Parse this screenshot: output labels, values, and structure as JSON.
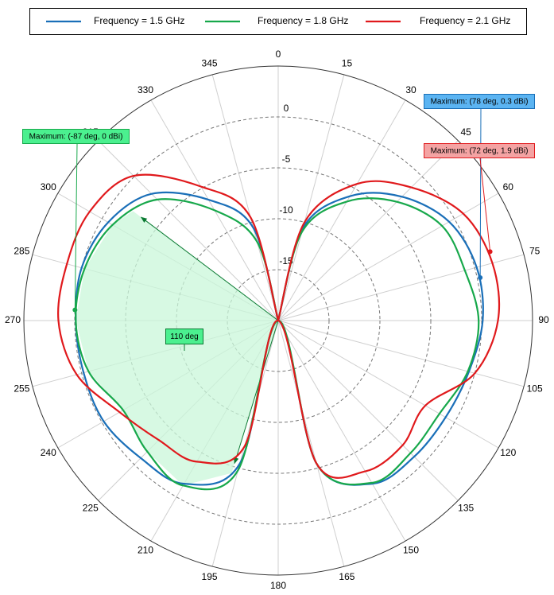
{
  "chart_data": {
    "type": "polar",
    "x": [
      0,
      15,
      30,
      45,
      60,
      75,
      90,
      105,
      120,
      135,
      150,
      165,
      180,
      195,
      210,
      225,
      240,
      255,
      270,
      285,
      300,
      315,
      330,
      345,
      360
    ],
    "series": [
      {
        "name": "Frequency = 1.5 GHz",
        "color": "#1a6fb8",
        "values": [
          -20,
          -10.6,
          -5.9,
          -2.8,
          -0.6,
          0.2,
          0.1,
          -0.6,
          -1,
          -1.1,
          -1.5,
          -5.5,
          -20,
          -5.5,
          -1.5,
          -0.9,
          -0.2,
          -0.2,
          -0.1,
          0,
          -0.7,
          -2.4,
          -6.3,
          -10.6,
          -20
        ]
      },
      {
        "name": "Frequency = 1.8 GHz",
        "color": "#17a84b",
        "values": [
          -20,
          -11,
          -6.5,
          -3.5,
          -1.4,
          -1,
          -0.3,
          -0.7,
          -1.7,
          -1.6,
          -1.6,
          -5.5,
          -20,
          -4.8,
          -1.3,
          -1.8,
          -2.4,
          -0.7,
          -0.1,
          -0.3,
          -1.2,
          -3.2,
          -7.5,
          -12,
          -20
        ]
      },
      {
        "name": "Frequency = 2.1 GHz",
        "color": "#e0191c",
        "values": [
          -20,
          -10,
          -4.5,
          -1.5,
          1,
          1.8,
          1.6,
          0,
          -3.3,
          -2.7,
          -2.9,
          -5.5,
          -20,
          -7.2,
          -4,
          -3.4,
          -2,
          0.5,
          1.6,
          1.5,
          1.4,
          0.1,
          -4.8,
          -9.5,
          -20
        ]
      }
    ],
    "rlim": [
      -20,
      5
    ],
    "rticks": [
      0,
      -5,
      -10,
      -15
    ],
    "xticks": [
      0,
      15,
      30,
      45,
      60,
      75,
      90,
      105,
      120,
      135,
      150,
      165,
      180,
      195,
      210,
      225,
      240,
      255,
      270,
      285,
      300,
      315,
      330,
      345
    ],
    "annotations": [
      {
        "label": "Maximum: (78 deg, 0.3 dBi)",
        "series": 0,
        "angle": 78,
        "value": 0.3,
        "color": "#5bb4f2"
      },
      {
        "label": "Maximum: (72 deg, 1.9 dBi)",
        "series": 2,
        "angle": 72,
        "value": 1.9,
        "color": "#f4a3a3"
      },
      {
        "label": "Maximum: (-87 deg, 0 dBi)",
        "series": 1,
        "angle": -87,
        "value": 0,
        "color": "#4bf08f"
      }
    ],
    "beamwidth": {
      "label": "110 deg",
      "series": 1,
      "from": 197,
      "to": 307,
      "color": "#c9f7da"
    }
  }
}
